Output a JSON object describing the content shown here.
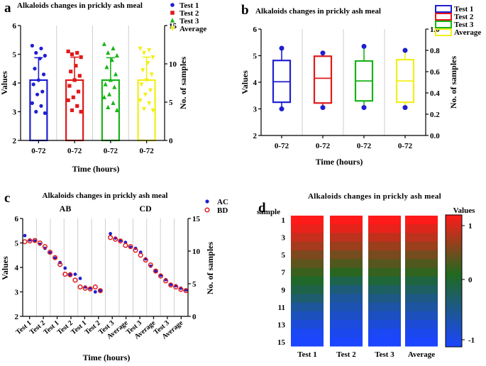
{
  "chart_data": [
    {
      "panel": "a",
      "type": "bar",
      "title": "Alkaloids changes in prickly ash meal",
      "xlabel": "Time (hours)",
      "ylabel": "Values",
      "y2label": "No. of samples",
      "categories": [
        "0-72",
        "0-72",
        "0-72",
        "0-72"
      ],
      "ylim": [
        2,
        6
      ],
      "yticks": [
        "2",
        "3",
        "4",
        "5",
        "6"
      ],
      "y2lim": [
        0,
        15
      ],
      "y2ticks": [
        "0",
        "5",
        "10",
        "15"
      ],
      "legend": [
        {
          "name": "Test 1",
          "color": "#1f1fd1",
          "marker": "circle"
        },
        {
          "name": "Test 2",
          "color": "#e01a1a",
          "marker": "square"
        },
        {
          "name": "Test 3",
          "color": "#19b419",
          "marker": "triangle"
        },
        {
          "name": "Average",
          "color": "#f2ef1b",
          "marker": "triangle-down"
        }
      ],
      "series": [
        {
          "name": "Test 1",
          "color": "#1f1fd1",
          "mean": 4.1,
          "sd": 0.78,
          "points": [
            5.3,
            5.2,
            5.05,
            4.95,
            4.85,
            4.5,
            4.3,
            4.1,
            3.95,
            3.7,
            3.6,
            3.3,
            3.2,
            3.0,
            2.95
          ]
        },
        {
          "name": "Test 2",
          "color": "#e01a1a",
          "mean": 4.1,
          "sd": 0.8,
          "points": [
            5.1,
            5.05,
            5.0,
            4.9,
            4.6,
            4.4,
            4.25,
            4.1,
            3.9,
            3.7,
            3.5,
            3.4,
            3.2,
            3.05,
            3.0
          ]
        },
        {
          "name": "Test 3",
          "color": "#19b419",
          "mean": 4.1,
          "sd": 0.78,
          "points": [
            5.35,
            5.2,
            5.05,
            4.95,
            4.8,
            4.55,
            4.3,
            4.1,
            3.95,
            3.85,
            3.6,
            3.5,
            3.3,
            3.15,
            3.05
          ]
        },
        {
          "name": "Average",
          "color": "#f2ef1b",
          "mean": 4.1,
          "sd": 0.8,
          "points": [
            5.2,
            5.15,
            5.05,
            4.9,
            4.7,
            4.45,
            4.3,
            4.1,
            3.95,
            3.75,
            3.6,
            3.4,
            3.3,
            3.1,
            3.05
          ]
        }
      ]
    },
    {
      "panel": "b",
      "type": "box",
      "title": "Alkaloids changes in prickly ash meal",
      "xlabel": "Time (hours)",
      "ylabel": "Values",
      "y2label": "No. of samples",
      "categories": [
        "0-72",
        "0-72",
        "0-72",
        "0-72"
      ],
      "ylim": [
        2,
        6
      ],
      "yticks": [
        "2",
        "3",
        "4",
        "5",
        "6"
      ],
      "y2lim": [
        0,
        1
      ],
      "y2ticks": [
        "0.0",
        "0.2",
        "0.4",
        "0.6",
        "0.8",
        "1.0"
      ],
      "legend": [
        {
          "name": "Test 1",
          "color": "#1f1fd1"
        },
        {
          "name": "Test 2",
          "color": "#e01a1a"
        },
        {
          "name": "Test 3",
          "color": "#19b419"
        },
        {
          "name": "Average",
          "color": "#f2ef1b"
        }
      ],
      "series": [
        {
          "name": "Test 1",
          "color": "#1f1fd1",
          "min": 3.0,
          "q1": 3.25,
          "median": 4.02,
          "q3": 4.82,
          "max": 5.28
        },
        {
          "name": "Test 2",
          "color": "#e01a1a",
          "min": 3.05,
          "q1": 3.22,
          "median": 4.15,
          "q3": 4.98,
          "max": 5.1
        },
        {
          "name": "Test 3",
          "color": "#19b419",
          "min": 3.05,
          "q1": 3.3,
          "median": 4.05,
          "q3": 4.8,
          "max": 5.35
        },
        {
          "name": "Average",
          "color": "#f2ef1b",
          "min": 3.05,
          "q1": 3.25,
          "median": 4.05,
          "q3": 4.85,
          "max": 5.2
        }
      ]
    },
    {
      "panel": "c",
      "type": "scatter",
      "title": "Alkaloids changes in prickly ash meal",
      "xlabel": "Time (hours)",
      "ylabel": "Values",
      "y2label": "No. of samples",
      "group_labels": [
        "AB",
        "CD"
      ],
      "ylim": [
        2,
        6
      ],
      "yticks": [
        "2",
        "3",
        "4",
        "5",
        "6"
      ],
      "y2lim": [
        0,
        15
      ],
      "y2ticks": [
        "0",
        "5",
        "10",
        "15"
      ],
      "categories": [
        "Test 1",
        "Test 2",
        "Test 1",
        "Test 2",
        "Test 1",
        "Test 2",
        "Test 3",
        "Average",
        "Test 3",
        "Average",
        "Test 3",
        "Average"
      ],
      "legend": [
        {
          "name": "AC",
          "color": "#1f1fd1",
          "marker": "filled-circle"
        },
        {
          "name": "BD",
          "color": "#e01a1a",
          "marker": "open-circle"
        }
      ],
      "series": [
        {
          "name": "AC",
          "color": "#1f1fd1",
          "points": [
            [
              0,
              5.3
            ],
            [
              1,
              5.12
            ],
            [
              2,
              5.08
            ],
            [
              3,
              4.95
            ],
            [
              4,
              4.78
            ],
            [
              5,
              4.6
            ],
            [
              6,
              4.38
            ],
            [
              7,
              4.2
            ],
            [
              8,
              3.97
            ],
            [
              9,
              3.7
            ],
            [
              10,
              3.72
            ],
            [
              11,
              3.55
            ],
            [
              12,
              3.2
            ],
            [
              13,
              3.15
            ],
            [
              14,
              3.0
            ],
            [
              15,
              3.05
            ],
            [
              17,
              5.38
            ],
            [
              18,
              5.2
            ],
            [
              19,
              5.1
            ],
            [
              20,
              5.02
            ],
            [
              21,
              4.82
            ],
            [
              22,
              4.78
            ],
            [
              23,
              4.62
            ],
            [
              24,
              4.35
            ],
            [
              25,
              4.05
            ],
            [
              26,
              3.85
            ],
            [
              27,
              3.68
            ],
            [
              28,
              3.5
            ],
            [
              29,
              3.3
            ],
            [
              30,
              3.25
            ],
            [
              31,
              3.15
            ],
            [
              32,
              3.08
            ]
          ]
        },
        {
          "name": "BD",
          "color": "#e01a1a",
          "points": [
            [
              0,
              5.05
            ],
            [
              1,
              5.08
            ],
            [
              2,
              5.1
            ],
            [
              3,
              5.0
            ],
            [
              4,
              4.85
            ],
            [
              5,
              4.62
            ],
            [
              6,
              4.4
            ],
            [
              7,
              4.12
            ],
            [
              8,
              3.72
            ],
            [
              9,
              3.7
            ],
            [
              10,
              3.48
            ],
            [
              11,
              3.2
            ],
            [
              12,
              3.15
            ],
            [
              13,
              3.12
            ],
            [
              14,
              3.2
            ],
            [
              15,
              3.05
            ],
            [
              17,
              5.22
            ],
            [
              18,
              5.15
            ],
            [
              19,
              5.08
            ],
            [
              20,
              4.9
            ],
            [
              21,
              4.85
            ],
            [
              22,
              4.7
            ],
            [
              23,
              4.5
            ],
            [
              24,
              4.3
            ],
            [
              25,
              4.1
            ],
            [
              26,
              3.85
            ],
            [
              27,
              3.65
            ],
            [
              28,
              3.45
            ],
            [
              29,
              3.28
            ],
            [
              30,
              3.2
            ],
            [
              31,
              3.1
            ],
            [
              32,
              3.05
            ]
          ]
        }
      ]
    },
    {
      "panel": "d",
      "type": "heatmap",
      "title": "Alkaloids changes in prickly ash meal",
      "row_header": "sample",
      "legend_title": "Values",
      "columns": [
        "Test 1",
        "Test 2",
        "Test 3",
        "Average"
      ],
      "row_labels": [
        "1",
        "3",
        "5",
        "7",
        "9",
        "11",
        "13",
        "15"
      ],
      "scale_ticks": [
        "1",
        "0",
        "-1"
      ],
      "colors": {
        "high": "#ff1a1a",
        "mid": "#1f6a1f",
        "low": "#1b45ff"
      },
      "values": [
        [
          1.0,
          1.0,
          1.0,
          1.0
        ],
        [
          0.9,
          0.88,
          0.9,
          0.85
        ],
        [
          0.75,
          0.7,
          0.72,
          0.7
        ],
        [
          0.6,
          0.55,
          0.55,
          0.55
        ],
        [
          0.42,
          0.38,
          0.4,
          0.38
        ],
        [
          0.28,
          0.22,
          0.25,
          0.22
        ],
        [
          0.12,
          0.05,
          0.1,
          0.08
        ],
        [
          -0.05,
          -0.2,
          -0.12,
          -0.15
        ],
        [
          -0.18,
          -0.4,
          -0.3,
          -0.3
        ],
        [
          -0.35,
          -0.55,
          -0.45,
          -0.45
        ],
        [
          -0.55,
          -0.65,
          -0.6,
          -0.58
        ],
        [
          -0.7,
          -0.75,
          -0.72,
          -0.7
        ],
        [
          -0.82,
          -0.85,
          -0.82,
          -0.82
        ],
        [
          -0.95,
          -0.92,
          -0.95,
          -0.92
        ],
        [
          -1.0,
          -1.0,
          -1.0,
          -1.0
        ]
      ]
    }
  ]
}
